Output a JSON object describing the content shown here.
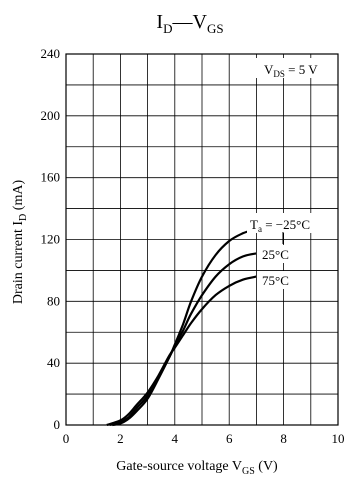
{
  "chart_data": {
    "type": "line",
    "title": {
      "main": "I",
      "sub": "D",
      "mid": "—V",
      "sub2": "GS"
    },
    "xlabel": {
      "text": "Gate-source voltage  V",
      "sub": "GS",
      "unit": "  (V)"
    },
    "ylabel": {
      "text": "Drain current  I",
      "sub": "D",
      "unit": "  (mA)"
    },
    "xlim": [
      0,
      10
    ],
    "ylim": [
      0,
      240
    ],
    "xticks": [
      0,
      2,
      4,
      6,
      8,
      10
    ],
    "yticks": [
      0,
      40,
      80,
      120,
      160,
      200,
      240
    ],
    "x_minor_step": 1,
    "y_minor_step": 20,
    "grid": true,
    "condition": {
      "text": "V",
      "sub": "DS",
      "rest": " = 5 V"
    },
    "series": [
      {
        "name": "T",
        "name_sub": "a",
        "name_rest": " = −25°C",
        "x": [
          1.7,
          2.0,
          2.3,
          2.6,
          3.0,
          3.4,
          3.8,
          4.0,
          4.3,
          4.6,
          5.0,
          5.5,
          6.0,
          6.5,
          7.0
        ],
        "y": [
          0,
          1,
          4,
          9,
          17,
          30,
          44,
          52,
          65,
          80,
          96,
          110,
          119,
          124,
          127
        ]
      },
      {
        "name": "25°C",
        "x": [
          1.6,
          2.0,
          2.3,
          2.6,
          3.0,
          3.4,
          3.8,
          4.0,
          4.3,
          4.6,
          5.0,
          5.5,
          6.0,
          6.5,
          7.0
        ],
        "y": [
          0,
          2,
          5,
          11,
          19,
          31,
          44,
          51,
          61,
          72,
          84,
          96,
          104,
          109,
          111
        ]
      },
      {
        "name": "75°C",
        "x": [
          1.5,
          2.0,
          2.3,
          2.6,
          3.0,
          3.4,
          3.8,
          4.0,
          4.3,
          4.6,
          5.0,
          5.5,
          6.0,
          6.5,
          7.0
        ],
        "y": [
          0,
          3,
          7,
          13,
          21,
          32,
          45,
          50,
          58,
          66,
          75,
          84,
          90,
          94,
          96
        ]
      }
    ]
  }
}
